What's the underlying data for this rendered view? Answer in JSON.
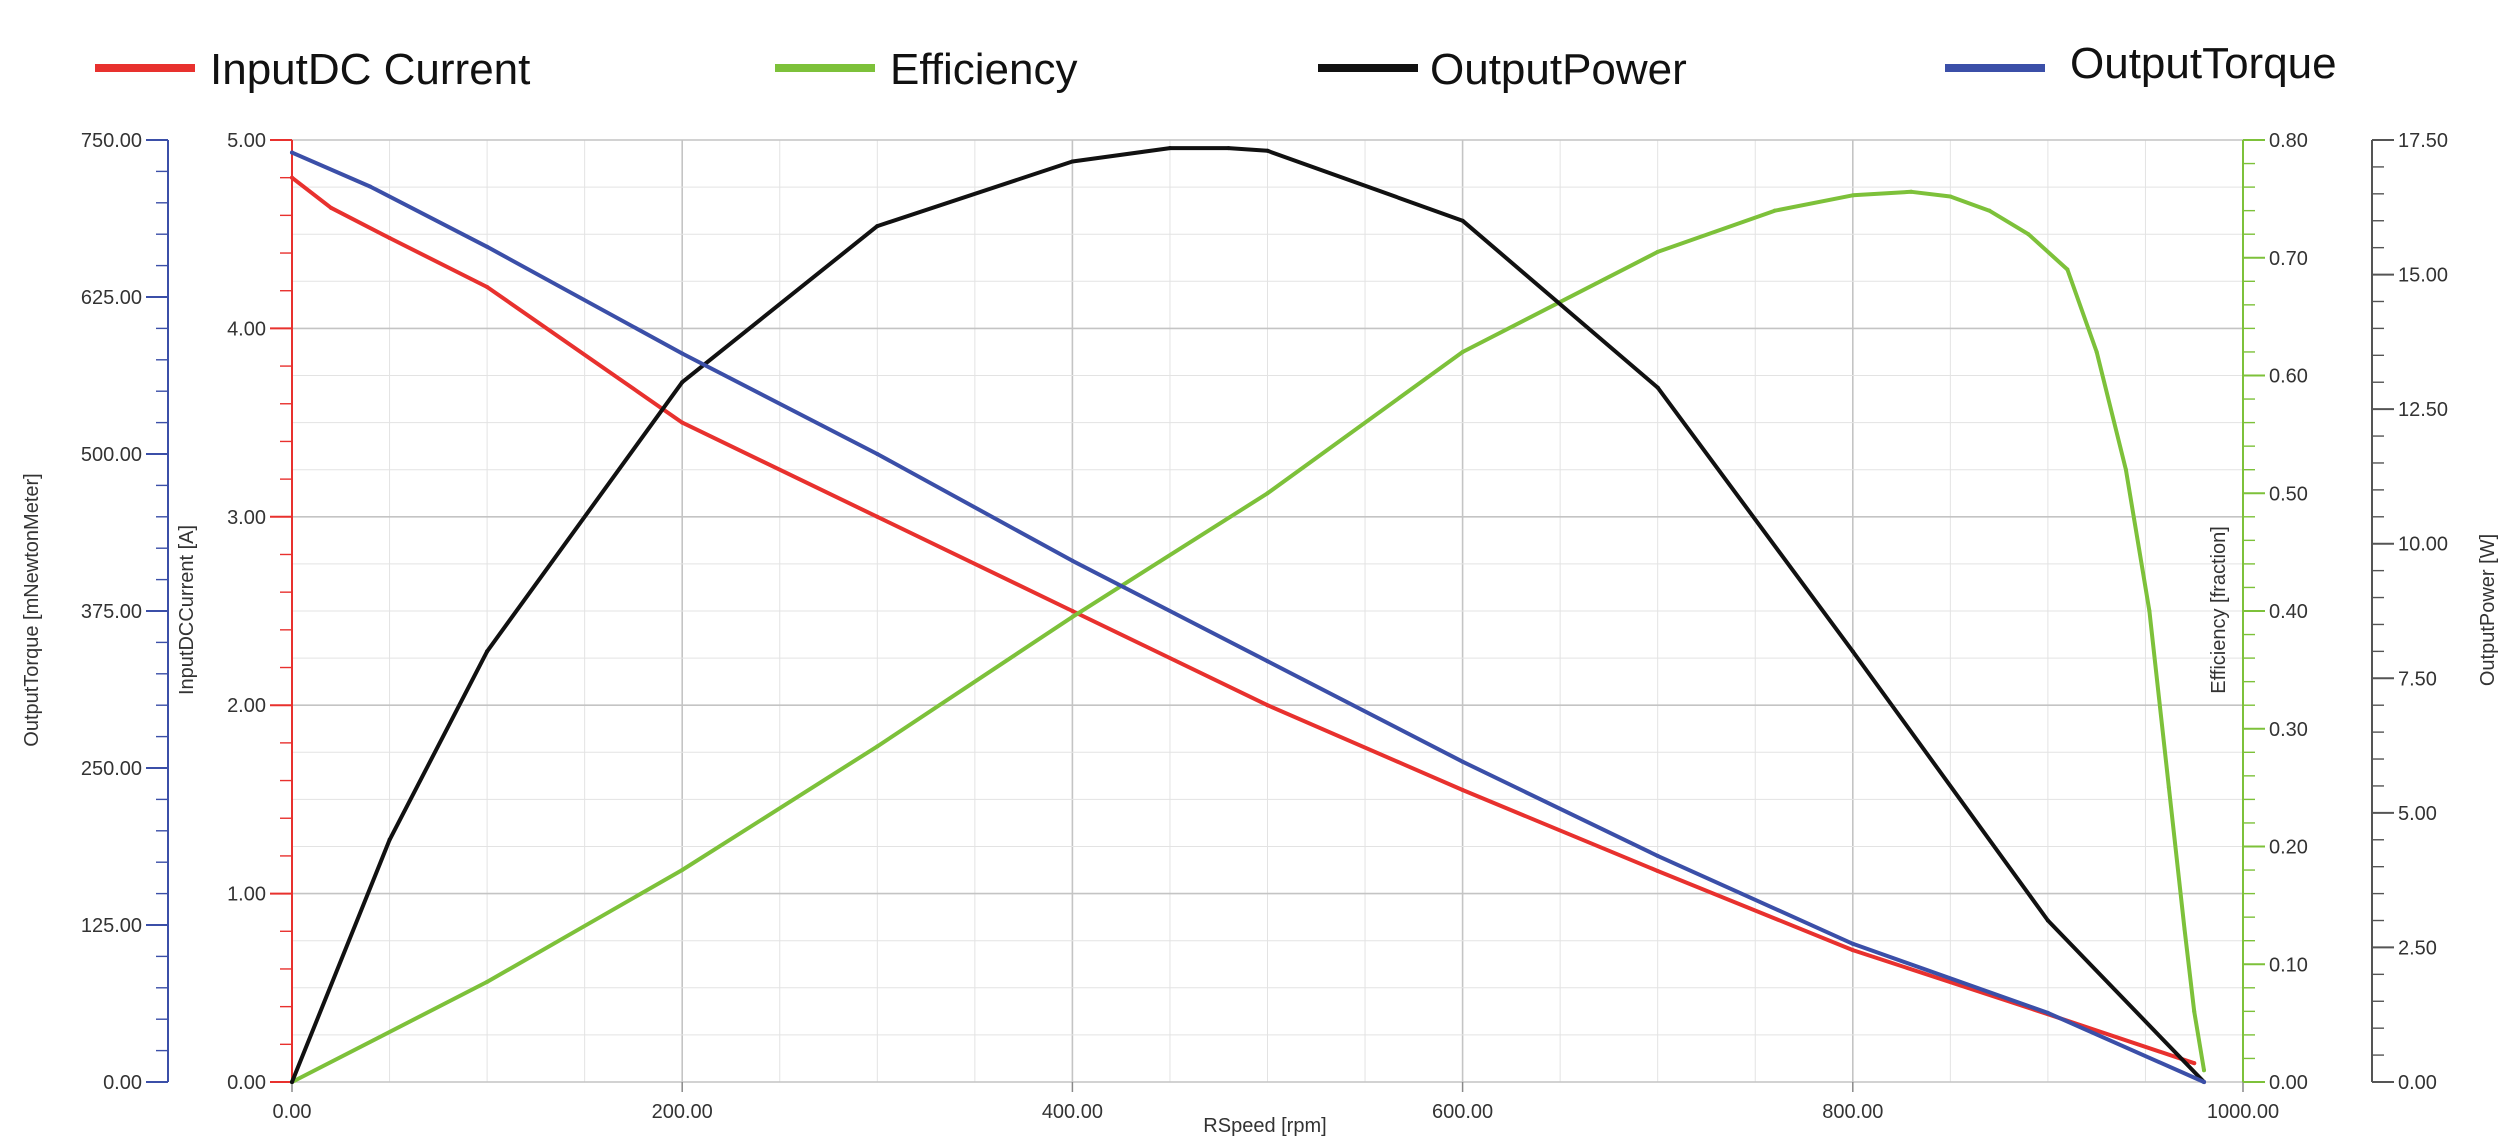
{
  "chart_data": {
    "type": "line",
    "title": "",
    "legend": {
      "placement": "top",
      "entries": [
        {
          "name": "InputDC Current",
          "color": "#e8312e"
        },
        {
          "name": "Efficiency",
          "color": "#7dc13a"
        },
        {
          "name": "OutputPower",
          "color": "#111111"
        },
        {
          "name": "OutputTorque",
          "color": "#3b4fa8"
        }
      ]
    },
    "x_axis": {
      "label": "RSpeed [rpm]",
      "range": [
        0,
        1000
      ],
      "ticks": [
        0,
        200,
        400,
        600,
        800,
        1000
      ],
      "tick_labels": [
        "0.00",
        "200.00",
        "400.00",
        "600.00",
        "800.00",
        "1000.00"
      ],
      "grid": true
    },
    "y_axes": [
      {
        "id": "torque",
        "label": "OutputTorque [mNewtonMeter]",
        "side": "left-outer",
        "color": "#3b4fa8",
        "range": [
          0,
          750
        ],
        "ticks": [
          0,
          125,
          250,
          375,
          500,
          625,
          750
        ],
        "tick_labels": [
          "0.00",
          "125.00",
          "250.00",
          "375.00",
          "500.00",
          "625.00",
          "750.00"
        ]
      },
      {
        "id": "current",
        "label": "InputDCCurrent [A]",
        "side": "left-inner",
        "color": "#e8312e",
        "range": [
          0,
          5
        ],
        "ticks": [
          0,
          1,
          2,
          3,
          4,
          5
        ],
        "tick_labels": [
          "0.00",
          "1.00",
          "2.00",
          "3.00",
          "4.00",
          "5.00"
        ]
      },
      {
        "id": "efficiency",
        "label": "Efficiency [fraction]",
        "side": "right-inner",
        "color": "#7dc13a",
        "range": [
          0,
          0.8
        ],
        "ticks": [
          0,
          0.1,
          0.2,
          0.3,
          0.4,
          0.5,
          0.6,
          0.7,
          0.8
        ],
        "tick_labels": [
          "0.00",
          "0.10",
          "0.20",
          "0.30",
          "0.40",
          "0.50",
          "0.60",
          "0.70",
          "0.80"
        ]
      },
      {
        "id": "power",
        "label": "OutputPower [W]",
        "side": "right-outer",
        "color": "#555555",
        "range": [
          0,
          17.5
        ],
        "ticks": [
          0,
          2.5,
          5,
          7.5,
          10,
          12.5,
          15,
          17.5
        ],
        "tick_labels": [
          "0.00",
          "2.50",
          "5.00",
          "7.50",
          "10.00",
          "12.50",
          "15.00",
          "17.50"
        ]
      }
    ],
    "series": [
      {
        "name": "InputDC Current",
        "axis": "current",
        "color": "#e8312e",
        "x": [
          0,
          20,
          50,
          100,
          200,
          300,
          400,
          500,
          600,
          700,
          800,
          900,
          975
        ],
        "y": [
          4.8,
          4.64,
          4.48,
          4.22,
          3.5,
          3.0,
          2.5,
          2.0,
          1.55,
          1.12,
          0.7,
          0.36,
          0.1
        ]
      },
      {
        "name": "Efficiency",
        "axis": "efficiency",
        "color": "#7dc13a",
        "x": [
          0,
          100,
          200,
          300,
          400,
          500,
          600,
          700,
          760,
          800,
          830,
          850,
          870,
          890,
          910,
          925,
          940,
          952,
          962,
          970,
          975,
          980
        ],
        "y": [
          0,
          0.085,
          0.18,
          0.285,
          0.395,
          0.5,
          0.62,
          0.705,
          0.74,
          0.753,
          0.756,
          0.752,
          0.74,
          0.72,
          0.69,
          0.62,
          0.52,
          0.4,
          0.25,
          0.13,
          0.06,
          0.01
        ]
      },
      {
        "name": "OutputPower",
        "axis": "power",
        "color": "#111111",
        "x": [
          0,
          50,
          100,
          200,
          300,
          400,
          450,
          480,
          500,
          600,
          700,
          800,
          900,
          980
        ],
        "y": [
          0,
          4.5,
          8.0,
          13.0,
          15.9,
          17.1,
          17.35,
          17.35,
          17.3,
          16.0,
          12.9,
          8.0,
          3.0,
          0
        ]
      },
      {
        "name": "OutputTorque",
        "axis": "torque",
        "color": "#3b4fa8",
        "x": [
          0,
          40,
          100,
          200,
          300,
          400,
          500,
          600,
          700,
          800,
          900,
          980
        ],
        "y": [
          740,
          713,
          665,
          580,
          500,
          415,
          335,
          255,
          180,
          110,
          55,
          0
        ]
      }
    ]
  }
}
